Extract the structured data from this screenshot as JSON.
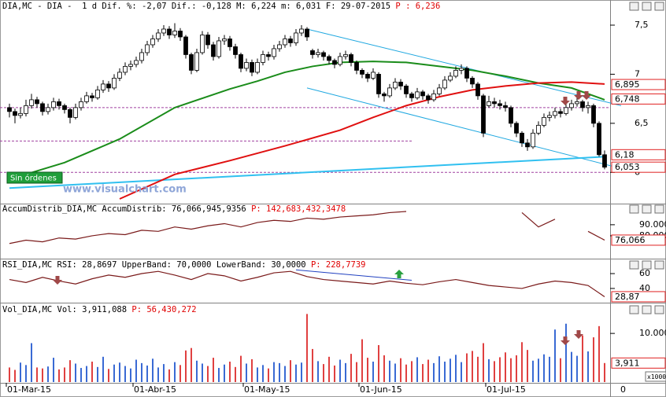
{
  "badge": "Sin órdenes",
  "watermark": "www.visualchart.com",
  "x_end_label": "0",
  "chart_data": [
    {
      "type": "candlestick",
      "title": "DIA,MC - DIA -  1 d Dif. %: -2,07 Dif.: -0,128 M: 6,224 m: 6,031 F: 29-07-2015",
      "title_price": "P : 6,236",
      "categories": [
        "01-Mar-15",
        null,
        null,
        null,
        null,
        null,
        null,
        null,
        null,
        null,
        null,
        null,
        null,
        null,
        null,
        null,
        null,
        null,
        null,
        null,
        null,
        null,
        null,
        "01-Abr-15",
        null,
        null,
        null,
        null,
        null,
        null,
        null,
        null,
        null,
        null,
        null,
        null,
        null,
        null,
        null,
        null,
        null,
        null,
        null,
        "01-May-15",
        null,
        null,
        null,
        null,
        null,
        null,
        null,
        null,
        null,
        null,
        null,
        null,
        null,
        null,
        null,
        null,
        null,
        null,
        null,
        null,
        "01-Jun-15",
        null,
        null,
        null,
        null,
        null,
        null,
        null,
        null,
        null,
        null,
        null,
        null,
        null,
        null,
        null,
        null,
        null,
        null,
        null,
        null,
        null,
        null,
        "01-Jul-15",
        null,
        null,
        null,
        null,
        null,
        null,
        null,
        null,
        null,
        null,
        null,
        null,
        null,
        null,
        null,
        null,
        null,
        null,
        null,
        null,
        null
      ],
      "ohlc": [
        [
          6.66,
          6.7,
          6.56,
          6.62
        ],
        [
          6.62,
          6.65,
          6.5,
          6.58
        ],
        [
          6.58,
          6.66,
          6.55,
          6.6
        ],
        [
          6.6,
          6.74,
          6.57,
          6.68
        ],
        [
          6.68,
          6.8,
          6.65,
          6.74
        ],
        [
          6.74,
          6.77,
          6.66,
          6.7
        ],
        [
          6.7,
          6.72,
          6.58,
          6.62
        ],
        [
          6.62,
          6.7,
          6.59,
          6.66
        ],
        [
          6.66,
          6.76,
          6.63,
          6.72
        ],
        [
          6.72,
          6.75,
          6.64,
          6.68
        ],
        [
          6.68,
          6.7,
          6.6,
          6.64
        ],
        [
          6.64,
          6.66,
          6.5,
          6.56
        ],
        [
          6.56,
          6.7,
          6.54,
          6.66
        ],
        [
          6.66,
          6.76,
          6.63,
          6.72
        ],
        [
          6.72,
          6.82,
          6.7,
          6.78
        ],
        [
          6.78,
          6.81,
          6.72,
          6.76
        ],
        [
          6.76,
          6.88,
          6.74,
          6.84
        ],
        [
          6.84,
          6.94,
          6.81,
          6.9
        ],
        [
          6.9,
          6.93,
          6.82,
          6.86
        ],
        [
          6.86,
          7.0,
          6.84,
          6.96
        ],
        [
          6.96,
          7.06,
          6.93,
          7.02
        ],
        [
          7.02,
          7.12,
          6.99,
          7.08
        ],
        [
          7.08,
          7.14,
          7.04,
          7.1
        ],
        [
          7.1,
          7.18,
          7.07,
          7.14
        ],
        [
          7.14,
          7.26,
          7.11,
          7.22
        ],
        [
          7.22,
          7.34,
          7.19,
          7.3
        ],
        [
          7.3,
          7.4,
          7.27,
          7.36
        ],
        [
          7.36,
          7.46,
          7.33,
          7.42
        ],
        [
          7.42,
          7.5,
          7.39,
          7.46
        ],
        [
          7.46,
          7.49,
          7.36,
          7.4
        ],
        [
          7.4,
          7.52,
          7.37,
          7.44
        ],
        [
          7.44,
          7.47,
          7.34,
          7.38
        ],
        [
          7.38,
          7.4,
          7.16,
          7.2
        ],
        [
          7.2,
          7.22,
          7.0,
          7.04
        ],
        [
          7.04,
          7.26,
          7.02,
          7.22
        ],
        [
          7.22,
          7.44,
          7.2,
          7.4
        ],
        [
          7.4,
          7.43,
          7.26,
          7.3
        ],
        [
          7.3,
          7.33,
          7.14,
          7.18
        ],
        [
          7.18,
          7.38,
          7.16,
          7.34
        ],
        [
          7.34,
          7.4,
          7.3,
          7.36
        ],
        [
          7.36,
          7.39,
          7.24,
          7.28
        ],
        [
          7.28,
          7.31,
          7.16,
          7.2
        ],
        [
          7.2,
          7.22,
          7.02,
          7.06
        ],
        [
          7.06,
          7.16,
          7.03,
          7.12
        ],
        [
          7.12,
          7.15,
          6.98,
          7.02
        ],
        [
          7.02,
          7.16,
          7.0,
          7.12
        ],
        [
          7.12,
          7.24,
          7.09,
          7.2
        ],
        [
          7.2,
          7.23,
          7.14,
          7.18
        ],
        [
          7.18,
          7.3,
          7.15,
          7.26
        ],
        [
          7.26,
          7.34,
          7.23,
          7.3
        ],
        [
          7.3,
          7.4,
          7.27,
          7.36
        ],
        [
          7.36,
          7.39,
          7.28,
          7.32
        ],
        [
          7.32,
          7.46,
          7.29,
          7.42
        ],
        [
          7.42,
          7.5,
          7.39,
          7.46
        ],
        [
          7.46,
          7.48,
          7.34,
          7.38
        ],
        [
          7.24,
          7.26,
          7.16,
          7.2
        ],
        [
          7.2,
          7.26,
          7.17,
          7.22
        ],
        [
          7.22,
          7.24,
          7.14,
          7.18
        ],
        [
          7.18,
          7.2,
          7.1,
          7.14
        ],
        [
          7.14,
          7.16,
          7.06,
          7.1
        ],
        [
          7.1,
          7.22,
          7.08,
          7.18
        ],
        [
          7.18,
          7.24,
          7.15,
          7.2
        ],
        [
          7.2,
          7.22,
          7.08,
          7.12
        ],
        [
          7.12,
          7.14,
          7.0,
          7.04
        ],
        [
          7.04,
          7.06,
          6.96,
          7.0
        ],
        [
          7.0,
          7.02,
          6.92,
          6.96
        ],
        [
          6.96,
          7.06,
          6.94,
          7.02
        ],
        [
          7.0,
          7.02,
          6.76,
          6.8
        ],
        [
          6.8,
          6.82,
          6.72,
          6.78
        ],
        [
          6.78,
          6.9,
          6.76,
          6.86
        ],
        [
          6.86,
          6.96,
          6.84,
          6.92
        ],
        [
          6.92,
          6.95,
          6.84,
          6.88
        ],
        [
          6.88,
          6.9,
          6.76,
          6.8
        ],
        [
          6.8,
          6.82,
          6.72,
          6.76
        ],
        [
          6.76,
          6.86,
          6.74,
          6.82
        ],
        [
          6.82,
          6.84,
          6.74,
          6.78
        ],
        [
          6.78,
          6.8,
          6.7,
          6.74
        ],
        [
          6.74,
          6.84,
          6.72,
          6.8
        ],
        [
          6.8,
          6.9,
          6.78,
          6.86
        ],
        [
          6.86,
          6.98,
          6.84,
          6.94
        ],
        [
          6.94,
          7.02,
          6.92,
          6.98
        ],
        [
          6.98,
          7.08,
          6.96,
          7.04
        ],
        [
          7.04,
          7.1,
          7.0,
          7.06
        ],
        [
          7.06,
          7.08,
          6.92,
          6.96
        ],
        [
          6.96,
          6.98,
          6.86,
          6.9
        ],
        [
          6.9,
          6.92,
          6.74,
          6.78
        ],
        [
          6.78,
          6.8,
          6.36,
          6.4
        ],
        [
          6.68,
          6.78,
          6.66,
          6.72
        ],
        [
          6.72,
          6.76,
          6.66,
          6.7
        ],
        [
          6.7,
          6.74,
          6.64,
          6.68
        ],
        [
          6.68,
          6.72,
          6.62,
          6.66
        ],
        [
          6.66,
          6.68,
          6.46,
          6.5
        ],
        [
          6.5,
          6.52,
          6.36,
          6.4
        ],
        [
          6.4,
          6.42,
          6.26,
          6.3
        ],
        [
          6.3,
          6.34,
          6.22,
          6.26
        ],
        [
          6.26,
          6.44,
          6.24,
          6.4
        ],
        [
          6.4,
          6.52,
          6.38,
          6.48
        ],
        [
          6.48,
          6.6,
          6.46,
          6.56
        ],
        [
          6.56,
          6.62,
          6.52,
          6.58
        ],
        [
          6.58,
          6.66,
          6.55,
          6.62
        ],
        [
          6.62,
          6.65,
          6.56,
          6.6
        ],
        [
          6.6,
          6.7,
          6.58,
          6.66
        ],
        [
          6.66,
          6.74,
          6.63,
          6.7
        ],
        [
          6.7,
          6.76,
          6.67,
          6.72
        ],
        [
          6.72,
          6.74,
          6.62,
          6.66
        ],
        [
          6.66,
          6.72,
          6.6,
          6.68
        ],
        [
          6.68,
          6.7,
          6.46,
          6.5
        ],
        [
          6.5,
          6.52,
          6.16,
          6.18
        ],
        [
          6.18,
          6.224,
          6.031,
          6.053
        ]
      ],
      "up_color": "#ffffff",
      "down_color": "#000000",
      "series": [
        {
          "color": "#1a8c1a",
          "x": [
            0,
            10,
            20,
            30,
            40,
            45,
            50,
            55,
            60,
            66,
            72,
            78,
            84,
            90,
            96,
            102,
            108
          ],
          "values": [
            5.93,
            6.1,
            6.34,
            6.66,
            6.85,
            6.93,
            7.02,
            7.08,
            7.12,
            7.13,
            7.12,
            7.08,
            7.04,
            6.98,
            6.91,
            6.86,
            6.74
          ]
        },
        {
          "color": "#e01010",
          "x": [
            20,
            30,
            40,
            50,
            60,
            66,
            72,
            78,
            84,
            90,
            96,
            102,
            108
          ],
          "values": [
            5.73,
            5.98,
            6.12,
            6.27,
            6.43,
            6.56,
            6.68,
            6.77,
            6.84,
            6.88,
            6.91,
            6.92,
            6.9
          ]
        }
      ],
      "trendlines": [
        {
          "color": "#20a8e0",
          "width": 1,
          "x": [
            54,
            111
          ],
          "y": [
            7.46,
            6.68
          ]
        },
        {
          "color": "#20a8e0",
          "width": 1,
          "x": [
            54,
            111
          ],
          "y": [
            6.86,
            6.04
          ]
        },
        {
          "color": "#30c0f0",
          "width": 2,
          "x": [
            0,
            108
          ],
          "y": [
            5.84,
            6.16
          ]
        }
      ],
      "level_color": "#a040a0",
      "levels": [
        {
          "value": 6.66,
          "x_end": 110
        },
        {
          "value": 6.32,
          "x_end": 73
        },
        {
          "value": 6.0,
          "x_end": 110
        }
      ],
      "ylim": [
        5.69,
        7.62
      ],
      "yticks": [
        {
          "value": 7.5,
          "label": "7,5"
        },
        7,
        {
          "value": 6.5,
          "label": "6,5"
        },
        6
      ],
      "axis_labels": [
        {
          "value": 6.895,
          "label": "6,895"
        },
        {
          "value": 6.748,
          "label": "6,748"
        },
        {
          "value": 6.18,
          "label": "6,18"
        },
        {
          "value": 6.053,
          "label": "6,053"
        }
      ]
    },
    {
      "type": "line",
      "title": "AccumDistrib_DIA,MC AccumDistrib: 76,066,945,9356",
      "title_price": "P: 142,683,432,3478",
      "series": [
        {
          "color": "#7a1a1a",
          "x": [
            0,
            3,
            6,
            9,
            12,
            15,
            18,
            21,
            24,
            27,
            30,
            33,
            36,
            39,
            42,
            45,
            48,
            51,
            54,
            57,
            60,
            63,
            66,
            69,
            72,
            75,
            78,
            81,
            84,
            87,
            90,
            93,
            96,
            99,
            102,
            105,
            108
          ],
          "values": [
            73000,
            76000,
            74500,
            78000,
            77000,
            80000,
            82000,
            81000,
            85000,
            84000,
            88000,
            86000,
            89000,
            91000,
            88000,
            92000,
            94000,
            93000,
            96000,
            95000,
            97000,
            98000,
            99000,
            101000,
            102000,
            null,
            null,
            null,
            null,
            null,
            null,
            101000,
            88000,
            95000,
            null,
            84000,
            76066
          ]
        }
      ],
      "ylim": [
        60000,
        107000
      ],
      "yticks": [
        {
          "value": 90000,
          "label": "90.000"
        },
        {
          "value": 80000,
          "label": "80.000"
        }
      ],
      "axis_labels": [
        {
          "value": 76066,
          "label": "76,066"
        }
      ]
    },
    {
      "type": "line",
      "title": "RSI_DIA,MC RSI: 28,8697 UpperBand: 70,0000 LowerBand: 30,0000",
      "title_price": "P: 228,7739",
      "series": [
        {
          "color": "#7a1a1a",
          "x": [
            0,
            3,
            6,
            9,
            12,
            15,
            18,
            21,
            24,
            27,
            30,
            33,
            36,
            39,
            42,
            45,
            48,
            51,
            54,
            57,
            60,
            63,
            66,
            69,
            72,
            75,
            78,
            81,
            84,
            87,
            90,
            93,
            96,
            99,
            102,
            105,
            108
          ],
          "values": [
            52,
            48,
            55,
            50,
            46,
            53,
            58,
            55,
            60,
            63,
            58,
            52,
            60,
            57,
            50,
            55,
            61,
            63,
            56,
            52,
            50,
            48,
            46,
            50,
            47,
            45,
            49,
            52,
            48,
            44,
            42,
            40,
            46,
            50,
            48,
            44,
            28.87
          ]
        }
      ],
      "trendlines": [
        {
          "color": "#2040c0",
          "width": 1,
          "x": [
            52,
            73
          ],
          "y": [
            65,
            51
          ]
        }
      ],
      "ylim": [
        23,
        78
      ],
      "yticks": [
        60,
        40
      ],
      "axis_labels": [
        {
          "value": 28.87,
          "label": "28,87"
        }
      ]
    },
    {
      "type": "bar",
      "title": "Vol_DIA,MC Vol: 3,911,088",
      "title_price": "P: 56,430,272",
      "up_color": "#3a6ad4",
      "down_color": "#e04040",
      "values": [
        3000,
        2500,
        4000,
        3500,
        8000,
        3000,
        2800,
        3200,
        5000,
        2600,
        3000,
        4500,
        3800,
        2900,
        3300,
        4200,
        3100,
        5200,
        2700,
        3600,
        4000,
        3300,
        2800,
        4600,
        3900,
        3400,
        4800,
        3000,
        3700,
        2600,
        4100,
        3500,
        6500,
        7000,
        4400,
        3800,
        3300,
        5000,
        2900,
        3600,
        4200,
        3100,
        5400,
        3800,
        4700,
        3000,
        3500,
        2800,
        4100,
        3900,
        3300,
        4500,
        3600,
        4000,
        14000,
        6800,
        4300,
        3700,
        5200,
        3400,
        4600,
        3900,
        5800,
        4100,
        8800,
        5000,
        4200,
        7600,
        5500,
        4400,
        3800,
        4900,
        3600,
        4300,
        5100,
        3700,
        4600,
        3900,
        5300,
        4200,
        4800,
        5600,
        4100,
        5900,
        6400,
        5200,
        8000,
        4700,
        4300,
        5100,
        6100,
        4900,
        5500,
        8200,
        6600,
        4400,
        4800,
        5700,
        5200,
        10800,
        4900,
        12000,
        6200,
        5400,
        9600,
        6300,
        9200,
        11500,
        3911.088
      ],
      "ylim": [
        0,
        16000
      ],
      "yticks": [
        {
          "value": 10000,
          "label": "10.000"
        }
      ],
      "axis_labels": [
        {
          "value": 3911.088,
          "label": "3,911"
        }
      ],
      "unit_label": "x1000"
    }
  ]
}
